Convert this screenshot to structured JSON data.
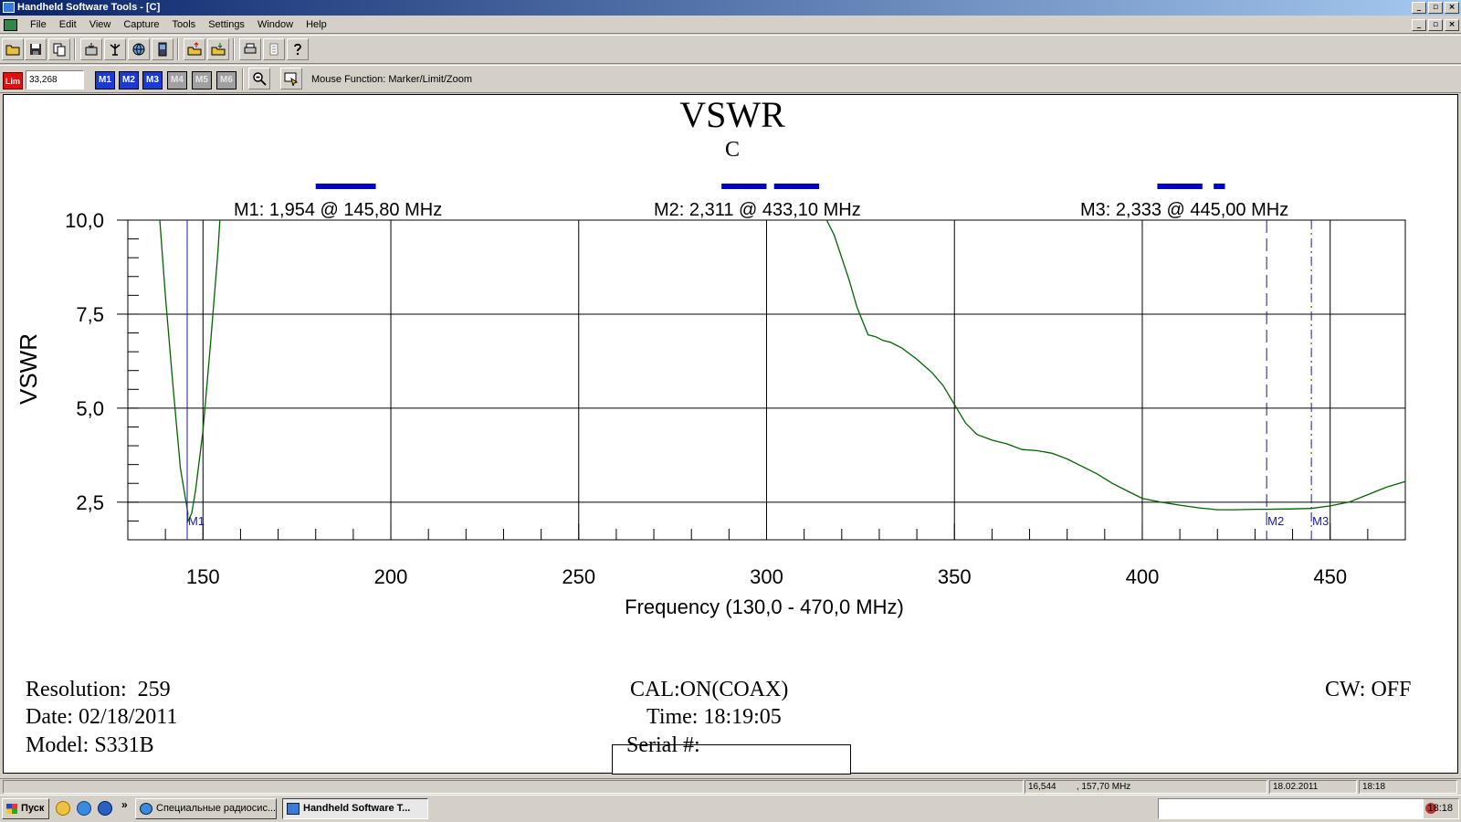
{
  "window": {
    "title": "Handheld Software Tools - [C]",
    "btn_min": "_",
    "btn_max": "▫",
    "btn_close": "×"
  },
  "menu": {
    "items": [
      "File",
      "Edit",
      "View",
      "Capture",
      "Tools",
      "Settings",
      "Window",
      "Help"
    ]
  },
  "toolbar": {
    "lim_label": "Lim",
    "lim_value": "33,268",
    "markers": [
      {
        "label": "M1",
        "active": true
      },
      {
        "label": "M2",
        "active": true
      },
      {
        "label": "M3",
        "active": true
      },
      {
        "label": "M4",
        "active": false
      },
      {
        "label": "M5",
        "active": false
      },
      {
        "label": "M6",
        "active": false
      }
    ],
    "mouse_function": "Mouse Function: Marker/Limit/Zoom"
  },
  "chart_data": {
    "type": "line",
    "title": "VSWR",
    "subtitle": "C",
    "xlabel": "Frequency (130,0 - 470,0 MHz)",
    "ylabel": "VSWR",
    "xlim": [
      130,
      470
    ],
    "ylim": [
      1.5,
      10.0
    ],
    "grid": true,
    "x_ticks": [
      {
        "value": 150,
        "label": "150"
      },
      {
        "value": 200,
        "label": "200"
      },
      {
        "value": 250,
        "label": "250"
      },
      {
        "value": 300,
        "label": "300"
      },
      {
        "value": 350,
        "label": "350"
      },
      {
        "value": 400,
        "label": "400"
      },
      {
        "value": 450,
        "label": "450"
      }
    ],
    "y_ticks": [
      {
        "value": 2.5,
        "label": "2,5"
      },
      {
        "value": 5.0,
        "label": "5,0"
      },
      {
        "value": 7.5,
        "label": "7,5"
      },
      {
        "value": 10.0,
        "label": "10,0"
      }
    ],
    "series": [
      {
        "segments": [
          [
            [
              138.5,
              10.0
            ],
            [
              140,
              8.0
            ],
            [
              142,
              5.6
            ],
            [
              144,
              3.4
            ],
            [
              146,
              2.2
            ],
            [
              145.8,
              1.954
            ],
            [
              147,
              2.2
            ],
            [
              148,
              2.8
            ],
            [
              150,
              4.4
            ],
            [
              152,
              6.7
            ],
            [
              154,
              9.2
            ],
            [
              154.5,
              10.0
            ]
          ],
          [
            [
              316,
              10.0
            ],
            [
              318,
              9.6
            ],
            [
              320,
              9.0
            ],
            [
              322,
              8.4
            ],
            [
              324,
              7.7
            ],
            [
              326,
              7.2
            ],
            [
              327,
              6.95
            ],
            [
              329,
              6.9
            ],
            [
              331,
              6.8
            ],
            [
              333,
              6.75
            ],
            [
              336,
              6.6
            ],
            [
              340,
              6.3
            ],
            [
              344,
              5.95
            ],
            [
              347,
              5.6
            ],
            [
              350,
              5.1
            ],
            [
              353,
              4.6
            ],
            [
              356,
              4.3
            ],
            [
              360,
              4.15
            ],
            [
              364,
              4.05
            ],
            [
              368,
              3.9
            ],
            [
              372,
              3.87
            ],
            [
              376,
              3.8
            ],
            [
              380,
              3.65
            ],
            [
              384,
              3.45
            ],
            [
              388,
              3.25
            ],
            [
              392,
              3.0
            ],
            [
              396,
              2.8
            ],
            [
              400,
              2.6
            ],
            [
              405,
              2.5
            ],
            [
              410,
              2.42
            ],
            [
              415,
              2.35
            ],
            [
              420,
              2.3
            ],
            [
              425,
              2.3
            ],
            [
              430,
              2.31
            ],
            [
              433.1,
              2.311
            ],
            [
              440,
              2.32
            ],
            [
              445,
              2.333
            ],
            [
              450,
              2.4
            ],
            [
              455,
              2.5
            ],
            [
              460,
              2.7
            ],
            [
              465,
              2.9
            ],
            [
              470,
              3.05
            ]
          ]
        ]
      }
    ],
    "markers": [
      {
        "id": "M1",
        "freq": 145.8,
        "value": 1.954,
        "readout": "M1: 1,954  @ 145,80 MHz",
        "dash": "none"
      },
      {
        "id": "M2",
        "freq": 433.1,
        "value": 2.311,
        "readout": "M2: 2,311  @ 433,10 MHz",
        "dash": "14,6"
      },
      {
        "id": "M3",
        "freq": 445.0,
        "value": 2.333,
        "readout": "M3: 2,333  @ 445,00 MHz",
        "dash": "10,4,2,4"
      }
    ],
    "limit_bars": [
      {
        "from": 180,
        "to": 196
      },
      {
        "from": 288,
        "to": 300
      },
      {
        "from": 302,
        "to": 314
      },
      {
        "from": 404,
        "to": 416
      },
      {
        "from": 419,
        "to": 422
      }
    ],
    "colors": {
      "trace": "#006400",
      "marker": "#1a1aa0",
      "limit": "#0000cc",
      "grid": "#000000"
    }
  },
  "info": {
    "resolution": "Resolution:  259",
    "date": "Date: 02/18/2011",
    "model": "Model: S331B",
    "cal": "CAL:ON(COAX)",
    "time": "Time: 18:19:05",
    "serial": "Serial #:",
    "cw": "CW: OFF"
  },
  "status": {
    "value": "16,544",
    "freq": ",  157,70 MHz",
    "date": "18.02.2011",
    "time": "18:18"
  },
  "taskbar": {
    "start": "Пуск",
    "chevron": "»",
    "tasks": [
      {
        "label": "Специальные радиосис...",
        "active": false
      },
      {
        "label": "Handheld Software T...",
        "active": true
      }
    ],
    "clock": "18:18"
  }
}
